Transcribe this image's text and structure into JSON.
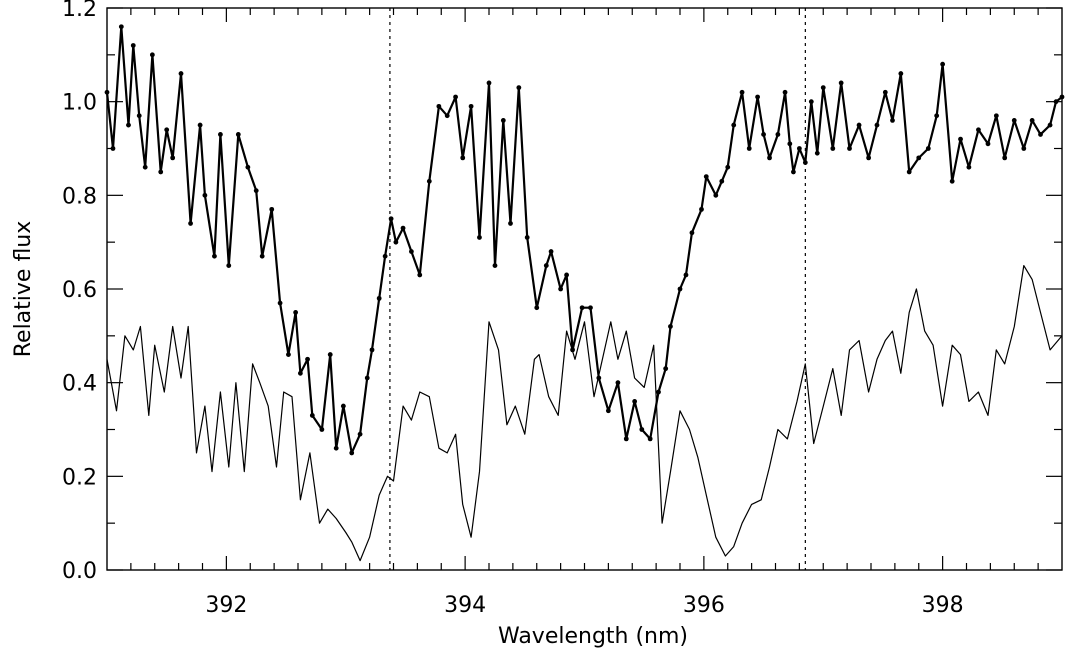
{
  "chart_data": {
    "type": "line",
    "xlabel": "Wavelength (nm)",
    "ylabel": "Relative flux",
    "xlim": [
      391.0,
      399.0
    ],
    "ylim": [
      0.0,
      1.2
    ],
    "x_ticks": [
      392,
      394,
      396,
      398
    ],
    "y_ticks": [
      0.0,
      0.2,
      0.4,
      0.6,
      0.8,
      1.0,
      1.2
    ],
    "x_tick_labels": [
      "392",
      "394",
      "396",
      "398"
    ],
    "y_tick_labels": [
      "0.0",
      "0.2",
      "0.4",
      "0.6",
      "0.8",
      "1.0",
      "1.2"
    ],
    "grid": false,
    "reference_lines_x": [
      393.37,
      396.85
    ],
    "series": [
      {
        "style": "thick line with dot markers",
        "color": "#000000",
        "x": [
          391.0,
          391.05,
          391.12,
          391.18,
          391.22,
          391.27,
          391.32,
          391.38,
          391.45,
          391.5,
          391.55,
          391.62,
          391.7,
          391.78,
          391.82,
          391.9,
          391.95,
          392.02,
          392.1,
          392.18,
          392.25,
          392.3,
          392.38,
          392.45,
          392.52,
          392.58,
          392.62,
          392.68,
          392.72,
          392.8,
          392.87,
          392.92,
          392.98,
          393.05,
          393.12,
          393.18,
          393.22,
          393.28,
          393.33,
          393.38,
          393.42,
          393.48,
          393.55,
          393.62,
          393.7,
          393.78,
          393.85,
          393.92,
          393.98,
          394.05,
          394.12,
          394.2,
          394.25,
          394.32,
          394.38,
          394.45,
          394.52,
          394.6,
          394.68,
          394.72,
          394.8,
          394.85,
          394.9,
          394.98,
          395.05,
          395.12,
          395.2,
          395.28,
          395.35,
          395.42,
          395.48,
          395.55,
          395.62,
          395.68,
          395.72,
          395.8,
          395.85,
          395.9,
          395.98,
          396.02,
          396.1,
          396.15,
          396.2,
          396.25,
          396.32,
          396.38,
          396.45,
          396.5,
          396.55,
          396.62,
          396.68,
          396.72,
          396.75,
          396.8,
          396.85,
          396.9,
          396.95,
          397.0,
          397.08,
          397.15,
          397.22,
          397.3,
          397.38,
          397.45,
          397.52,
          397.58,
          397.65,
          397.72,
          397.8,
          397.88,
          397.95,
          398.0,
          398.08,
          398.15,
          398.22,
          398.3,
          398.38,
          398.45,
          398.52,
          398.6,
          398.68,
          398.75,
          398.82,
          398.9,
          398.95,
          399.0
        ],
        "y": [
          1.02,
          0.9,
          1.16,
          0.95,
          1.12,
          0.97,
          0.86,
          1.1,
          0.85,
          0.94,
          0.88,
          1.06,
          0.74,
          0.95,
          0.8,
          0.67,
          0.93,
          0.65,
          0.93,
          0.86,
          0.81,
          0.67,
          0.77,
          0.57,
          0.46,
          0.55,
          0.42,
          0.45,
          0.33,
          0.3,
          0.46,
          0.26,
          0.35,
          0.25,
          0.29,
          0.41,
          0.47,
          0.58,
          0.67,
          0.75,
          0.7,
          0.73,
          0.68,
          0.63,
          0.83,
          0.99,
          0.97,
          1.01,
          0.88,
          0.99,
          0.71,
          1.04,
          0.65,
          0.96,
          0.74,
          1.03,
          0.71,
          0.56,
          0.65,
          0.68,
          0.6,
          0.63,
          0.47,
          0.56,
          0.56,
          0.41,
          0.34,
          0.4,
          0.28,
          0.36,
          0.3,
          0.28,
          0.38,
          0.43,
          0.52,
          0.6,
          0.63,
          0.72,
          0.77,
          0.84,
          0.8,
          0.83,
          0.86,
          0.95,
          1.02,
          0.9,
          1.01,
          0.93,
          0.88,
          0.93,
          1.02,
          0.91,
          0.85,
          0.9,
          0.87,
          1.0,
          0.89,
          1.03,
          0.9,
          1.04,
          0.9,
          0.95,
          0.88,
          0.95,
          1.02,
          0.96,
          1.06,
          0.85,
          0.88,
          0.9,
          0.97,
          1.08,
          0.83,
          0.92,
          0.86,
          0.94,
          0.91,
          0.97,
          0.88,
          0.96,
          0.9,
          0.96,
          0.93,
          0.95,
          1.0,
          1.01
        ]
      },
      {
        "style": "thin line",
        "color": "#000000",
        "x": [
          391.0,
          391.08,
          391.15,
          391.22,
          391.28,
          391.35,
          391.4,
          391.48,
          391.55,
          391.62,
          391.68,
          391.75,
          391.82,
          391.88,
          391.95,
          392.02,
          392.08,
          392.15,
          392.22,
          392.28,
          392.35,
          392.42,
          392.48,
          392.55,
          392.62,
          392.7,
          392.78,
          392.85,
          392.92,
          393.0,
          393.05,
          393.12,
          393.2,
          393.28,
          393.35,
          393.4,
          393.48,
          393.55,
          393.62,
          393.7,
          393.78,
          393.85,
          393.92,
          393.98,
          394.05,
          394.12,
          394.2,
          394.28,
          394.35,
          394.42,
          394.5,
          394.58,
          394.62,
          394.7,
          394.78,
          394.85,
          394.92,
          395.0,
          395.08,
          395.15,
          395.22,
          395.28,
          395.35,
          395.42,
          395.5,
          395.58,
          395.65,
          395.72,
          395.8,
          395.88,
          395.95,
          396.02,
          396.1,
          396.18,
          396.25,
          396.32,
          396.4,
          396.48,
          396.55,
          396.62,
          396.7,
          396.78,
          396.85,
          396.92,
          397.0,
          397.08,
          397.15,
          397.22,
          397.3,
          397.38,
          397.45,
          397.52,
          397.58,
          397.65,
          397.72,
          397.78,
          397.85,
          397.92,
          398.0,
          398.08,
          398.15,
          398.22,
          398.3,
          398.38,
          398.45,
          398.52,
          398.6,
          398.68,
          398.75,
          398.82,
          398.9,
          399.0
        ],
        "y": [
          0.45,
          0.34,
          0.5,
          0.47,
          0.52,
          0.33,
          0.48,
          0.38,
          0.52,
          0.41,
          0.52,
          0.25,
          0.35,
          0.21,
          0.38,
          0.22,
          0.4,
          0.21,
          0.44,
          0.4,
          0.35,
          0.22,
          0.38,
          0.37,
          0.15,
          0.25,
          0.1,
          0.13,
          0.11,
          0.08,
          0.06,
          0.02,
          0.07,
          0.16,
          0.2,
          0.19,
          0.35,
          0.32,
          0.38,
          0.37,
          0.26,
          0.25,
          0.29,
          0.14,
          0.07,
          0.21,
          0.53,
          0.47,
          0.31,
          0.35,
          0.29,
          0.45,
          0.46,
          0.37,
          0.33,
          0.51,
          0.45,
          0.53,
          0.37,
          0.45,
          0.53,
          0.45,
          0.51,
          0.41,
          0.39,
          0.48,
          0.1,
          0.21,
          0.34,
          0.3,
          0.24,
          0.16,
          0.07,
          0.03,
          0.05,
          0.1,
          0.14,
          0.15,
          0.22,
          0.3,
          0.28,
          0.36,
          0.44,
          0.27,
          0.35,
          0.43,
          0.33,
          0.47,
          0.49,
          0.38,
          0.45,
          0.49,
          0.51,
          0.42,
          0.55,
          0.6,
          0.51,
          0.48,
          0.35,
          0.48,
          0.46,
          0.36,
          0.38,
          0.33,
          0.47,
          0.44,
          0.52,
          0.65,
          0.62,
          0.55,
          0.47,
          0.5
        ]
      }
    ]
  }
}
